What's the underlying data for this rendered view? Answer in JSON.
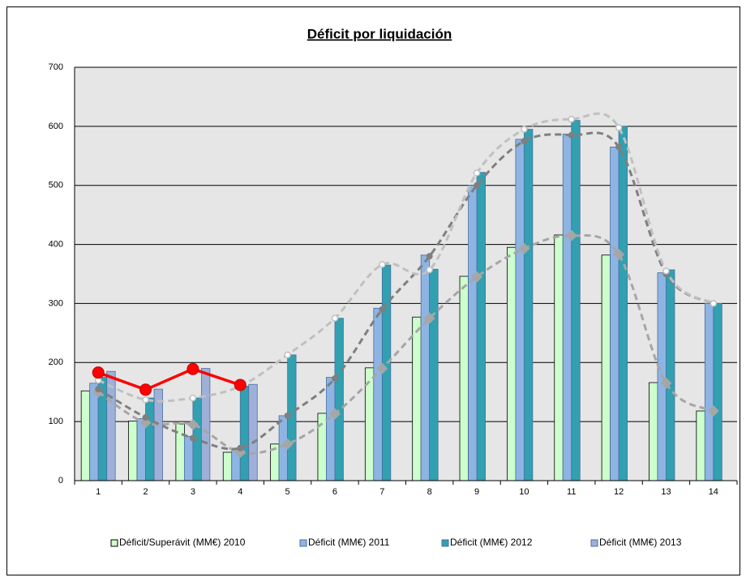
{
  "chart_data": {
    "type": "bar",
    "title": "Déficit por liquidación",
    "categories": [
      "1",
      "2",
      "3",
      "4",
      "5",
      "6",
      "7",
      "8",
      "9",
      "10",
      "11",
      "12",
      "13",
      "14"
    ],
    "ylim": [
      0,
      700
    ],
    "yticks": [
      0,
      100,
      200,
      300,
      400,
      500,
      600,
      700
    ],
    "grid": true,
    "legend": "bottom",
    "series": [
      {
        "name": "Déficit/Superávit (MM€) 2010",
        "kind": "bar",
        "color": "#ccffcc",
        "values": [
          152,
          101,
          96,
          48,
          62,
          114,
          191,
          277,
          346,
          395,
          416,
          382,
          166,
          118
        ]
      },
      {
        "name": "Déficit (MM€) 2011",
        "kind": "bar",
        "color": "#8eb4e3",
        "values": [
          165,
          105,
          75,
          55,
          110,
          175,
          292,
          382,
          500,
          578,
          587,
          565,
          352,
          300
        ]
      },
      {
        "name": "Déficit (MM€) 2012",
        "kind": "bar",
        "color": "#31a0b0",
        "values": [
          175,
          140,
          140,
          160,
          213,
          275,
          365,
          358,
          522,
          595,
          610,
          600,
          357,
          300
        ]
      },
      {
        "name": "Déficit (MM€) 2013",
        "kind": "bar",
        "color": "#9fb0d8",
        "values": [
          185,
          155,
          190,
          163,
          null,
          null,
          null,
          null,
          null,
          null,
          null,
          null,
          null,
          null
        ]
      },
      {
        "kind": "line",
        "color": "#a6a6a6",
        "dash": true,
        "marker": "diamond",
        "values": [
          150,
          98,
          95,
          48,
          62,
          113,
          190,
          275,
          345,
          393,
          415,
          383,
          165,
          118
        ]
      },
      {
        "kind": "line",
        "color": "#7f7f7f",
        "dash": true,
        "marker": "dot",
        "values": [
          155,
          107,
          72,
          55,
          110,
          173,
          290,
          380,
          500,
          575,
          585,
          565,
          350,
          300
        ]
      },
      {
        "kind": "line",
        "color": "#c0c0c0",
        "dash": true,
        "marker": "ring",
        "values": [
          170,
          137,
          140,
          160,
          213,
          275,
          366,
          357,
          521,
          595,
          612,
          598,
          355,
          300
        ]
      },
      {
        "kind": "line",
        "color": "#ff0000",
        "dash": false,
        "marker": "dot",
        "values": [
          183,
          154,
          189,
          162,
          null,
          null,
          null,
          null,
          null,
          null,
          null,
          null,
          null,
          null
        ]
      }
    ]
  }
}
